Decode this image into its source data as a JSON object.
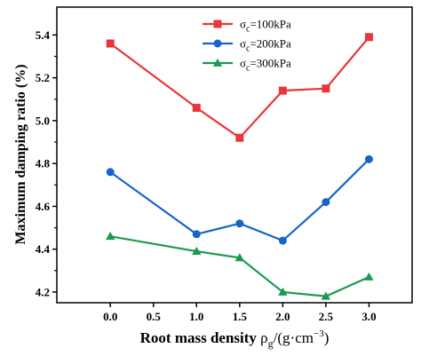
{
  "chart_data": {
    "type": "line",
    "x": [
      0.0,
      1.0,
      1.5,
      2.0,
      2.5,
      3.0
    ],
    "x_tick_labels": [
      "0.0",
      "0.5",
      "1.0",
      "1.5",
      "2.0",
      "2.5",
      "3.0"
    ],
    "x_tick_positions": [
      0.0,
      0.5,
      1.0,
      1.5,
      2.0,
      2.5,
      3.0
    ],
    "y_tick_labels": [
      "4.2",
      "4.4",
      "4.6",
      "4.8",
      "5.0",
      "5.2",
      "5.4"
    ],
    "y_tick_positions": [
      4.2,
      4.4,
      4.6,
      4.8,
      5.0,
      5.2,
      5.4
    ],
    "xlim": [
      -0.62,
      3.5
    ],
    "ylim": [
      4.15,
      5.53
    ],
    "ylabel": "Maximum damping ratio (%)",
    "xlabel_main": "Root mass density ",
    "xlabel_rho": "ρ",
    "xlabel_sub": "g",
    "xlabel_unit": "/(g·cm",
    "xlabel_sup": "−3",
    "xlabel_close": ")",
    "legend_position": "top-right",
    "grid": false,
    "series": [
      {
        "name_prefix": "σ",
        "name_sub": "c",
        "name_suffix": "=100kPa",
        "color": "#e8363b",
        "marker": "square",
        "values": [
          5.36,
          5.06,
          4.92,
          5.14,
          5.15,
          5.39
        ]
      },
      {
        "name_prefix": "σ",
        "name_sub": "c",
        "name_suffix": "=200kPa",
        "color": "#1565c8",
        "marker": "circle",
        "values": [
          4.76,
          4.47,
          4.52,
          4.44,
          4.62,
          4.82
        ]
      },
      {
        "name_prefix": "σ",
        "name_sub": "c",
        "name_suffix": "=300kPa",
        "color": "#1a9a4e",
        "marker": "triangle",
        "values": [
          4.46,
          4.39,
          4.36,
          4.2,
          4.18,
          4.27
        ]
      }
    ]
  }
}
